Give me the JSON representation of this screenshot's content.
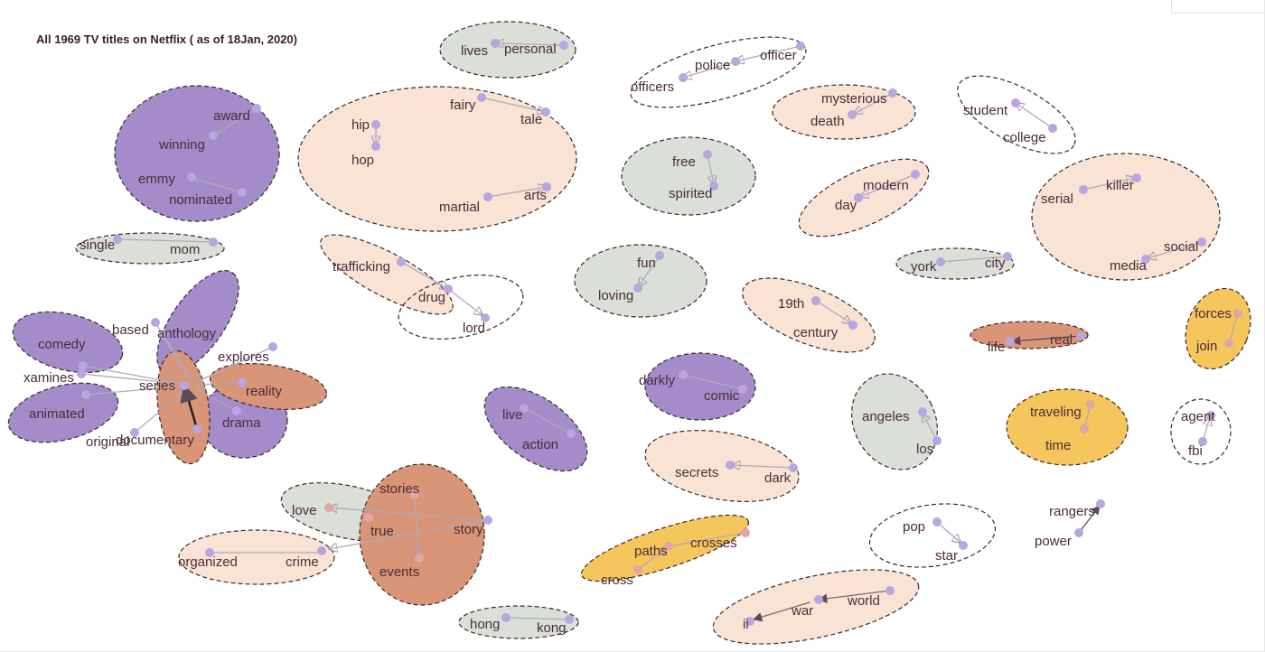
{
  "title": "All 1969 TV titles on Netflix ( as of 18Jan, 2020)",
  "colors": {
    "purple": "#a38cc9",
    "peach": "#f9e3d4",
    "rust": "#d99577",
    "grey": "#dadfd8",
    "yellow": "#f5c65c",
    "white": "#ffffff",
    "outline": "#3a2a2a",
    "node": "#b7a6df",
    "node_pink": "#e0a5a5",
    "edge": "#b0aab8"
  },
  "words": {
    "lives": "lives",
    "personal": "personal",
    "police": "police",
    "officer": "officer",
    "officers": "officers",
    "award": "award",
    "winning": "winning",
    "emmy": "emmy",
    "nominated": "nominated",
    "fairy": "fairy",
    "tale": "tale",
    "hip": "hip",
    "hop": "hop",
    "martial": "martial",
    "arts": "arts",
    "mysterious": "mysterious",
    "death": "death",
    "student": "student",
    "college": "college",
    "free": "free",
    "spirited": "spirited",
    "modern": "modern",
    "day": "day",
    "serial": "serial",
    "killer": "killer",
    "social": "social",
    "media": "media",
    "single": "single",
    "mom": "mom",
    "trafficking": "trafficking",
    "drug": "drug",
    "lord": "lord",
    "fun": "fun",
    "loving": "loving",
    "york": "york",
    "city": "city",
    "19th": "19th",
    "century": "century",
    "real": "real",
    "life": "life",
    "forces": "forces",
    "join": "join",
    "comedy": "comedy",
    "based": "based",
    "anthology": "anthology",
    "explores": "explores",
    "xamines": "xamines",
    "series": "series",
    "reality": "reality",
    "animated": "animated",
    "drama": "drama",
    "original": "original",
    "documentary": "documentary",
    "darkly": "darkly",
    "comic": "comic",
    "angeles": "angeles",
    "los": "los",
    "traveling": "traveling",
    "time": "time",
    "agent": "agent",
    "fbi": "fbi",
    "live": "live",
    "action": "action",
    "secrets": "secrets",
    "dark": "dark",
    "stories": "stories",
    "love": "love",
    "true": "true",
    "story": "story",
    "organized": "organized",
    "crime": "crime",
    "events": "events",
    "paths": "paths",
    "crosses": "crosses",
    "cross": "cross",
    "pop": "pop",
    "star": "star",
    "rangers": "rangers",
    "power": "power",
    "world": "world",
    "war": "war",
    "ii": "ii",
    "hong": "hong",
    "kong": "kong"
  }
}
